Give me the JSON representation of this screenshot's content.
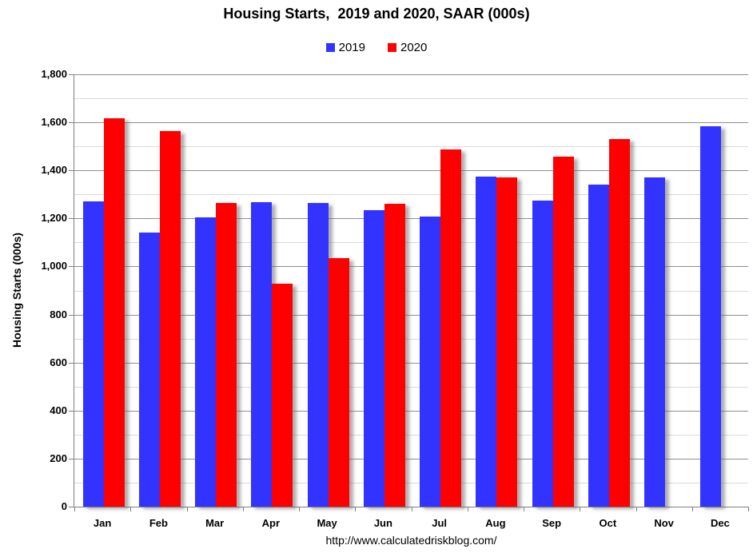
{
  "title": "Housing Starts,  2019 and 2020, SAAR (000s)",
  "footer_url": "http://www.calculatedriskblog.com/",
  "colors": {
    "series_2019": "#3333FF",
    "series_2020": "#FF0000",
    "major_gridline": "#8f8f8f",
    "minor_gridline": "#dadada",
    "axis": "#808080",
    "text": "#000000"
  },
  "legend": {
    "items": [
      {
        "label": "2019",
        "color": "#3333FF"
      },
      {
        "label": "2020",
        "color": "#FF0000"
      }
    ]
  },
  "chart_data": {
    "type": "bar",
    "title": "Housing Starts,  2019 and 2020, SAAR (000s)",
    "categories": [
      "Jan",
      "Feb",
      "Mar",
      "Apr",
      "May",
      "Jun",
      "Jul",
      "Aug",
      "Sep",
      "Oct",
      "Nov",
      "Dec"
    ],
    "series": [
      {
        "name": "2019",
        "color": "#3333FF",
        "values": [
          1270,
          1140,
          1205,
          1267,
          1264,
          1233,
          1209,
          1375,
          1273,
          1340,
          1370,
          1583
        ]
      },
      {
        "name": "2020",
        "color": "#FF0000",
        "values": [
          1616,
          1564,
          1266,
          930,
          1035,
          1262,
          1486,
          1371,
          1458,
          1530,
          null,
          null
        ]
      }
    ],
    "xlabel": "",
    "ylabel": "Housing Starts (000s)",
    "ylim": [
      0,
      1800
    ],
    "ytick_step": 200,
    "minor_ytick_step": 100,
    "ytick_labels": [
      "0",
      "200",
      "400",
      "600",
      "800",
      "1,000",
      "1,200",
      "1,400",
      "1,600",
      "1,800"
    ],
    "grid": true,
    "legend_position": "top-center"
  }
}
